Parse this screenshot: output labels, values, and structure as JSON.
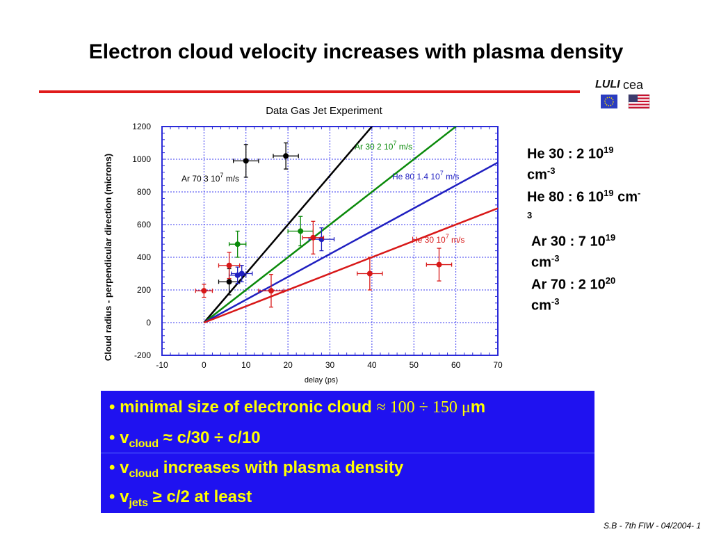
{
  "slide": {
    "title": "Electron cloud velocity increases with plasma density",
    "footer": "S.B - 7th FIW - 04/2004- 1"
  },
  "logos": {
    "luli_text": "LULI",
    "cea_text": "cea",
    "eu_flag": "eu-flag-icon",
    "us_flag": "us-flag-icon"
  },
  "legend": [
    {
      "line1": "He 30 : 2 10",
      "sup1": "19",
      "line2": "cm",
      "sup2": "-3",
      "color": "#e01a1a"
    },
    {
      "line1": "He 80 : 6 10",
      "sup1": "19",
      "tail": " cm",
      "sup2": "-",
      "line2": "3",
      "color": "#1f2bb3"
    },
    {
      "line1": "Ar 30 : 7 10",
      "sup1": "19",
      "line2": "cm",
      "sup2": "-3",
      "color": "#0a8a0a"
    },
    {
      "line1": "Ar 70 : 2 10",
      "sup1": "20",
      "line2": "cm",
      "sup2": "-3",
      "color": "#000000"
    }
  ],
  "bullets": [
    {
      "pre": "minimal size of electronic cloud ",
      "mid": "≈ 100 ÷ 150 μ",
      "post": "m"
    },
    {
      "pre": "v",
      "sub": "cloud",
      "post": " ≈ c/30 ÷ c/10"
    },
    {
      "pre": "v",
      "sub": "cloud",
      "post": " increases with plasma density"
    },
    {
      "pre": "v",
      "sub": "jets",
      "post": " ≥ c/2 at least"
    }
  ],
  "chart_data": {
    "type": "scatter",
    "title": "Data Gas Jet Experiment",
    "xlabel": "delay  (ps)",
    "ylabel": "Cloud radius - perpendicular direction  (microns)",
    "xlim": [
      -10,
      70
    ],
    "ylim": [
      -200,
      1200
    ],
    "xticks": [
      -10,
      0,
      10,
      20,
      30,
      40,
      50,
      60,
      70
    ],
    "yticks": [
      -200,
      0,
      200,
      400,
      600,
      800,
      1000,
      1200
    ],
    "grid": true,
    "lines": [
      {
        "name": "Ar 70",
        "label": "Ar 70     3  10",
        "sup": "7",
        "unit": " m/s",
        "slope": 30,
        "color": "#000000"
      },
      {
        "name": "Ar 30",
        "label": "Ar 30     2  10",
        "sup": "7",
        "unit": " m/s",
        "slope": 20,
        "color": "#0a8a0a"
      },
      {
        "name": "He 80",
        "label": "He 80     1.4  10",
        "sup": "7",
        "unit": " m/s",
        "slope": 14,
        "color": "#1f1fc0"
      },
      {
        "name": "He 30",
        "label": "He 30     10",
        "sup": "7",
        "unit": " m/s",
        "slope": 10,
        "color": "#d81818"
      }
    ],
    "series": [
      {
        "name": "Ar 70",
        "color": "#000000",
        "points": [
          {
            "x": 10,
            "y": 990,
            "xerr": 3,
            "yerr": 100
          },
          {
            "x": 19.5,
            "y": 1020,
            "xerr": 3,
            "yerr": 80
          },
          {
            "x": 6,
            "y": 250,
            "xerr": 2.5,
            "yerr": 80
          }
        ]
      },
      {
        "name": "Ar 30",
        "color": "#0a8a0a",
        "points": [
          {
            "x": 8,
            "y": 480,
            "xerr": 2,
            "yerr": 80
          },
          {
            "x": 23,
            "y": 560,
            "xerr": 3,
            "yerr": 90
          }
        ]
      },
      {
        "name": "He 80",
        "color": "#1f1fc0",
        "points": [
          {
            "x": 8,
            "y": 290,
            "xerr": 2,
            "yerr": 50
          },
          {
            "x": 9,
            "y": 300,
            "xerr": 2.5,
            "yerr": 50
          },
          {
            "x": 28,
            "y": 510,
            "xerr": 3,
            "yerr": 70
          }
        ]
      },
      {
        "name": "He 30",
        "color": "#d81818",
        "points": [
          {
            "x": 0,
            "y": 195,
            "xerr": 2,
            "yerr": 40
          },
          {
            "x": 6,
            "y": 350,
            "xerr": 2.5,
            "yerr": 80
          },
          {
            "x": 16,
            "y": 195,
            "xerr": 3,
            "yerr": 100
          },
          {
            "x": 26,
            "y": 520,
            "xerr": 2.5,
            "yerr": 100
          },
          {
            "x": 39.5,
            "y": 300,
            "xerr": 3,
            "yerr": 100
          },
          {
            "x": 56,
            "y": 355,
            "xerr": 3,
            "yerr": 100
          }
        ]
      }
    ]
  }
}
